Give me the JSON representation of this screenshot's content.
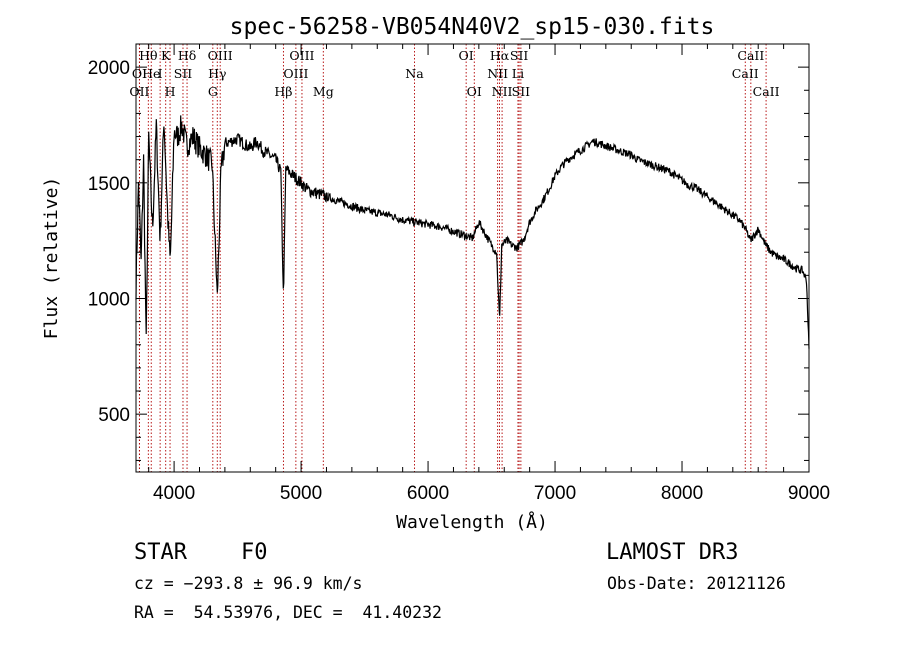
{
  "chart_data": {
    "type": "line",
    "title": "spec-56258-VB054N40V2_sp15-030.fits",
    "xlabel": "Wavelength (Å)",
    "ylabel": "Flux (relative)",
    "xlim": [
      3700,
      9000
    ],
    "ylim": [
      250,
      2100
    ],
    "x_ticks": [
      4000,
      5000,
      6000,
      7000,
      8000,
      9000
    ],
    "y_ticks": [
      500,
      1000,
      1500,
      2000
    ],
    "series": [
      {
        "name": "flux",
        "x": [
          3700,
          3720,
          3740,
          3760,
          3780,
          3800,
          3830,
          3860,
          3890,
          3920,
          3950,
          3970,
          4000,
          4030,
          4060,
          4100,
          4150,
          4200,
          4250,
          4300,
          4340,
          4370,
          4400,
          4450,
          4500,
          4550,
          4600,
          4650,
          4700,
          4750,
          4800,
          4840,
          4861,
          4880,
          4920,
          4960,
          5000,
          5050,
          5100,
          5150,
          5200,
          5300,
          5400,
          5500,
          5600,
          5700,
          5800,
          5900,
          6000,
          6100,
          6200,
          6300,
          6350,
          6400,
          6450,
          6500,
          6540,
          6563,
          6580,
          6620,
          6660,
          6700,
          6750,
          6800,
          6850,
          6900,
          6950,
          7000,
          7050,
          7100,
          7150,
          7200,
          7250,
          7300,
          7350,
          7400,
          7450,
          7500,
          7550,
          7600,
          7650,
          7700,
          7750,
          7800,
          7850,
          7900,
          7950,
          8000,
          8050,
          8100,
          8150,
          8200,
          8250,
          8300,
          8350,
          8400,
          8450,
          8500,
          8540,
          8600,
          8660,
          8700,
          8750,
          8800,
          8850,
          8900,
          8950,
          8980,
          9000
        ],
        "y": [
          1050,
          1500,
          1150,
          1600,
          800,
          1700,
          1300,
          1750,
          1250,
          1780,
          1350,
          1150,
          1720,
          1700,
          1750,
          1660,
          1700,
          1650,
          1620,
          1580,
          1000,
          1550,
          1670,
          1680,
          1690,
          1670,
          1650,
          1680,
          1640,
          1620,
          1600,
          1550,
          1000,
          1560,
          1540,
          1520,
          1500,
          1470,
          1460,
          1450,
          1440,
          1420,
          1400,
          1380,
          1370,
          1360,
          1340,
          1330,
          1320,
          1310,
          1290,
          1270,
          1260,
          1330,
          1280,
          1230,
          1200,
          900,
          1230,
          1250,
          1230,
          1220,
          1250,
          1330,
          1380,
          1420,
          1470,
          1530,
          1570,
          1600,
          1620,
          1640,
          1660,
          1680,
          1670,
          1660,
          1650,
          1640,
          1630,
          1620,
          1600,
          1590,
          1580,
          1570,
          1560,
          1550,
          1530,
          1510,
          1490,
          1480,
          1460,
          1440,
          1420,
          1400,
          1380,
          1360,
          1340,
          1300,
          1250,
          1300,
          1230,
          1200,
          1180,
          1170,
          1150,
          1130,
          1120,
          1080,
          780
        ]
      }
    ],
    "lines": [
      {
        "label": "Hθ",
        "x": 3797,
        "row": 0
      },
      {
        "label": "K",
        "x": 3934,
        "row": 0
      },
      {
        "label": "Hδ",
        "x": 4102,
        "row": 0
      },
      {
        "label": "OIII",
        "x": 4363,
        "row": 0
      },
      {
        "label": "OIII",
        "x": 5007,
        "row": 0
      },
      {
        "label": "OI",
        "x": 6300,
        "row": 0
      },
      {
        "label": "Hα",
        "x": 6563,
        "row": 0
      },
      {
        "label": "SII",
        "x": 6717,
        "row": 0
      },
      {
        "label": "CaII",
        "x": 8542,
        "row": 0
      },
      {
        "label": "OI",
        "x": 3727,
        "row": 1
      },
      {
        "label": "He",
        "x": 3820,
        "row": 1
      },
      {
        "label": "I",
        "x": 3890,
        "row": 1
      },
      {
        "label": "SII",
        "x": 4070,
        "row": 1
      },
      {
        "label": "Hγ",
        "x": 4340,
        "row": 1
      },
      {
        "label": "OIII",
        "x": 4959,
        "row": 1
      },
      {
        "label": "Na",
        "x": 5893,
        "row": 1
      },
      {
        "label": "NII",
        "x": 6548,
        "row": 1
      },
      {
        "label": "Li",
        "x": 6708,
        "row": 1
      },
      {
        "label": "CaII",
        "x": 8498,
        "row": 1
      },
      {
        "label": "OII",
        "x": 3727,
        "row": 2
      },
      {
        "label": "H",
        "x": 3968,
        "row": 2
      },
      {
        "label": "G",
        "x": 4305,
        "row": 2
      },
      {
        "label": "Hβ",
        "x": 4861,
        "row": 2
      },
      {
        "label": "Mg",
        "x": 5175,
        "row": 2
      },
      {
        "label": "OI",
        "x": 6364,
        "row": 2
      },
      {
        "label": "NII",
        "x": 6583,
        "row": 2
      },
      {
        "label": "SII",
        "x": 6731,
        "row": 2
      },
      {
        "label": "CaII",
        "x": 8662,
        "row": 2
      }
    ],
    "line_color": "#b00000"
  },
  "info": {
    "object_class": "STAR",
    "subclass": "F0",
    "survey": "LAMOST DR3",
    "cz": "cz = −293.8 ± 96.9 km/s",
    "obs_date": "Obs-Date: 20121126",
    "coords": "RA =  54.53976, DEC =  41.40232"
  }
}
